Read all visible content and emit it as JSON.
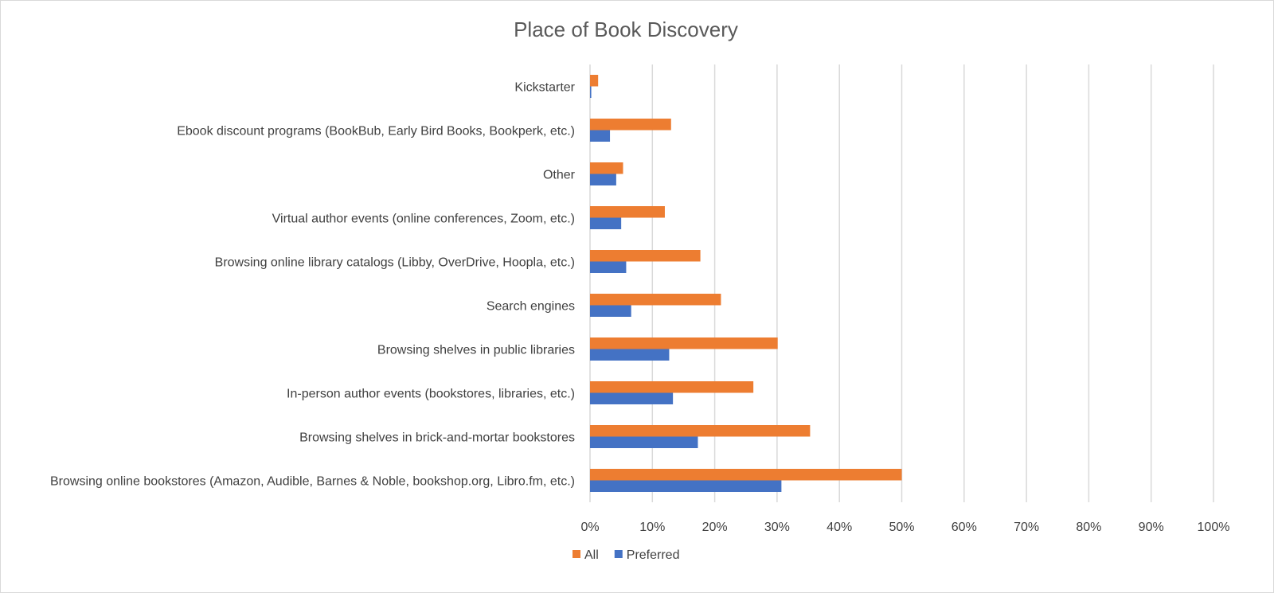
{
  "chart_data": {
    "type": "bar",
    "orientation": "horizontal",
    "title": "Place of Book Discovery",
    "categories": [
      "Kickstarter",
      "Ebook discount programs (BookBub, Early Bird Books, Bookperk, etc.)",
      "Other",
      "Virtual author events (online conferences, Zoom, etc.)",
      "Browsing online library catalogs (Libby, OverDrive, Hoopla, etc.)",
      "Search engines",
      "Browsing shelves in public libraries",
      "In-person author events (bookstores, libraries, etc.)",
      "Browsing shelves in brick-and-mortar bookstores",
      "Browsing online bookstores (Amazon, Audible, Barnes & Noble, bookshop.org, Libro.fm, etc.)"
    ],
    "series": [
      {
        "name": "All",
        "color": "#ED7D31",
        "values": [
          0.013,
          0.13,
          0.053,
          0.12,
          0.177,
          0.21,
          0.301,
          0.262,
          0.353,
          0.5
        ]
      },
      {
        "name": "Preferred",
        "color": "#4472C4",
        "values": [
          0.002,
          0.032,
          0.042,
          0.05,
          0.058,
          0.066,
          0.127,
          0.133,
          0.173,
          0.307
        ]
      }
    ],
    "xlim": [
      0,
      1
    ],
    "x_ticks": [
      "0%",
      "10%",
      "20%",
      "30%",
      "40%",
      "50%",
      "60%",
      "70%",
      "80%",
      "90%",
      "100%"
    ],
    "xlabel": "",
    "ylabel": "",
    "grid": "vertical",
    "legend": "bottom"
  }
}
